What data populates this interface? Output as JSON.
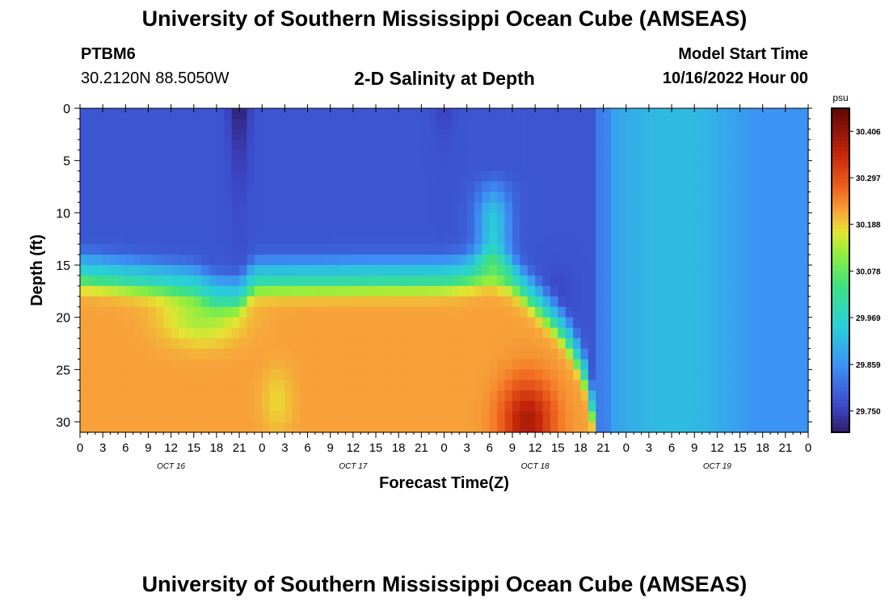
{
  "header": {
    "title": "University of Southern Mississippi Ocean Cube (AMSEAS)",
    "station_id": "PTBM6",
    "coords": "30.2120N  88.5050W",
    "subtitle": "2-D Salinity at Depth",
    "model_start_label": "Model Start Time",
    "model_start_value": "10/16/2022 Hour 00"
  },
  "footer": {
    "title": "University of Southern Mississippi Ocean Cube (AMSEAS)"
  },
  "chart_data": {
    "type": "heatmap",
    "title": "2-D Salinity at Depth",
    "xlabel": "Forecast Time(Z)",
    "ylabel": "Depth (ft)",
    "x_unit": "hours since 10/16/2022 00Z",
    "x_range": [
      0,
      96
    ],
    "x_tick_step": 3,
    "x_tick_labels": [
      "0",
      "3",
      "6",
      "9",
      "12",
      "15",
      "18",
      "21",
      "0",
      "3",
      "6",
      "9",
      "12",
      "15",
      "18",
      "21",
      "0",
      "3",
      "6",
      "9",
      "12",
      "15",
      "18",
      "21",
      "0",
      "3",
      "6",
      "9",
      "12",
      "15",
      "18",
      "21",
      "0"
    ],
    "day_labels": [
      "OCT 16",
      "OCT 17",
      "OCT 18",
      "OCT 19"
    ],
    "y_range": [
      0,
      31
    ],
    "y_ticks": [
      0,
      5,
      10,
      15,
      20,
      25,
      30
    ],
    "y_inverted": true,
    "colorbar": {
      "unit": "psu",
      "range": [
        29.7,
        30.46
      ],
      "ticks": [
        "30.406",
        "30.297",
        "30.188",
        "30.078",
        "29.969",
        "29.859",
        "29.750"
      ]
    },
    "colormap_stops": [
      [
        0.0,
        "#2f1d6a"
      ],
      [
        0.08,
        "#3c48c8"
      ],
      [
        0.2,
        "#3d8ef5"
      ],
      [
        0.33,
        "#29d0d7"
      ],
      [
        0.45,
        "#3ee082"
      ],
      [
        0.55,
        "#8fee3e"
      ],
      [
        0.62,
        "#e6e432"
      ],
      [
        0.68,
        "#f7a53a"
      ],
      [
        0.75,
        "#f0651f"
      ],
      [
        0.86,
        "#c4250b"
      ],
      [
        1.0,
        "#5e0707"
      ]
    ],
    "structure": {
      "regime_change_hour": 68,
      "surface_layer_psu": 29.78,
      "bottom_layer_psu": 30.22,
      "well_mixed_psu_range": [
        29.86,
        29.92
      ],
      "peak_psu": 30.4,
      "peak_at": {
        "hour": 59,
        "depth_ft": 30
      },
      "min_psu": 29.71,
      "min_at": {
        "hour": 21,
        "depth_ft": 2
      },
      "halocline_depth_ft": [
        [
          0,
          16.0
        ],
        [
          15,
          17.2
        ],
        [
          18,
          18.2
        ],
        [
          21,
          18.3
        ],
        [
          23,
          16.6
        ],
        [
          48,
          16.4
        ],
        [
          54,
          15.8
        ],
        [
          57,
          16.5
        ],
        [
          60,
          18.5
        ],
        [
          63,
          20.8
        ],
        [
          65,
          23.0
        ],
        [
          67,
          26.5
        ],
        [
          68,
          31.0
        ]
      ]
    }
  }
}
